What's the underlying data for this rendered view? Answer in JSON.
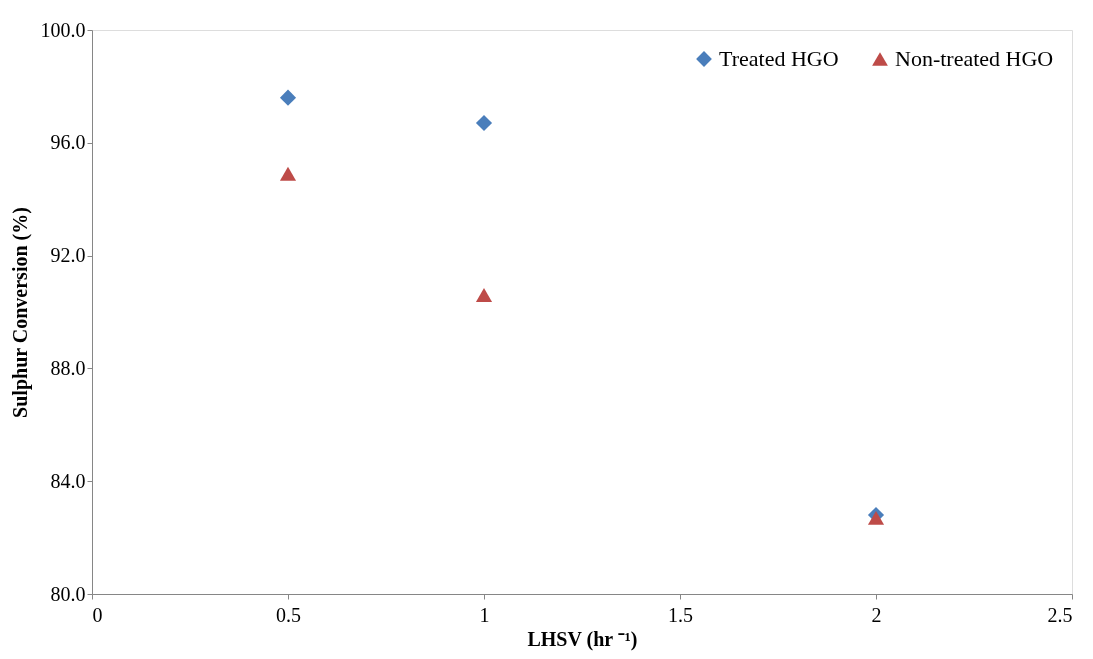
{
  "chart_data": {
    "type": "scatter",
    "xlabel": "LHSV (hr ⁻¹)",
    "ylabel": "Sulphur Conversion (%)",
    "xlim": [
      0,
      2.5
    ],
    "xticks": [
      0,
      0.5,
      1,
      1.5,
      2,
      2.5
    ],
    "ylim": [
      80,
      100
    ],
    "yticks": [
      {
        "value": 80,
        "label": "80.0"
      },
      {
        "value": 84,
        "label": "84.0"
      },
      {
        "value": 88,
        "label": "88.0"
      },
      {
        "value": 92,
        "label": "92.0"
      },
      {
        "value": 96,
        "label": "96.0"
      },
      {
        "value": 100,
        "label": "100.0"
      }
    ],
    "grid": false,
    "legend": "top right",
    "series": [
      {
        "name": "Treated HGO",
        "color": "#4a7ebb",
        "marker": "diamond",
        "x": [
          0.5,
          1,
          2
        ],
        "values": [
          97.6,
          96.7,
          82.8
        ]
      },
      {
        "name": "Non-treated HGO",
        "color": "#be4b48",
        "marker": "triangle",
        "x": [
          0.5,
          1,
          2
        ],
        "values": [
          94.9,
          90.6,
          82.7
        ]
      }
    ]
  }
}
